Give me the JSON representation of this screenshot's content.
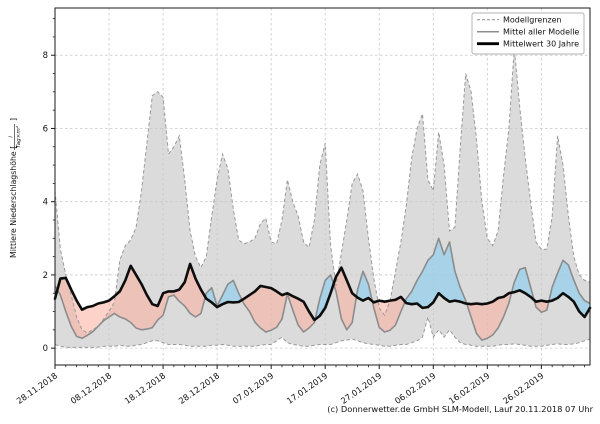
{
  "figure": {
    "footer": "(c) Donnerwetter.de GmbH SLM-Modell, Lauf 20.11.2018 07 Uhr",
    "background": "#ffffff"
  },
  "chart_data": {
    "type": "line",
    "title": "",
    "xlabel": "",
    "ylabel": "Mittlere Niederschlagshöhe [l/(Tag×m²)]",
    "ylabel_parts": {
      "prefix": "Mittlere Niederschlagshöhe [",
      "numerator": "l",
      "denominator": "Tag×m²",
      "suffix": "]"
    },
    "ylim": [
      -0.46,
      9.29
    ],
    "yticks": [
      0,
      2,
      4,
      6,
      8
    ],
    "grid": true,
    "n_days": 100,
    "start_date": "28.11.2018",
    "x_tick_labels": [
      "28.11.2018",
      "08.12.2018",
      "18.12.2018",
      "28.12.2018",
      "07.01.2019",
      "17.01.2019",
      "27.01.2019",
      "06.02.2019",
      "16.02.2019",
      "26.02.2019"
    ],
    "x_tick_day_indices": [
      0,
      10,
      20,
      30,
      40,
      50,
      60,
      70,
      80,
      90
    ],
    "legend": {
      "position": "top-right",
      "entries": [
        {
          "label": "Modellgrenzen",
          "style": "dashed",
          "color": "#999999"
        },
        {
          "label": "Mittel aller Modelle",
          "style": "solid",
          "color": "#8c8c8c"
        },
        {
          "label": "Mittelwert 30 Jahre",
          "style": "solid-thick",
          "color": "#000000"
        }
      ]
    },
    "colors": {
      "band_fill": "#dbdbdb",
      "band_border": "#999999",
      "above_normal_fill": "rgba(146,207,236,0.7)",
      "below_normal_fill": "rgba(252,174,156,0.55)",
      "model_mean_line": "#8c8c8c",
      "mean_30yr_line": "#0d0d0d",
      "grid_line": "#c8c8c8"
    },
    "series": [
      {
        "name": "model_min",
        "label": "Modellgrenzen (min)",
        "values": [
          0.1,
          0.05,
          0.02,
          0.02,
          0.02,
          0.02,
          0.02,
          0.02,
          0.03,
          0.05,
          0.05,
          0.05,
          0.08,
          0.05,
          0.05,
          0.08,
          0.1,
          0.15,
          0.2,
          0.2,
          0.15,
          0.1,
          0.1,
          0.1,
          0.08,
          0.05,
          0.05,
          0.05,
          0.05,
          0.08,
          0.08,
          0.1,
          0.08,
          0.05,
          0.05,
          0.05,
          0.05,
          0.05,
          0.08,
          0.1,
          0.1,
          0.2,
          0.3,
          0.15,
          0.1,
          0.08,
          0.05,
          0.05,
          0.08,
          0.1,
          0.1,
          0.1,
          0.15,
          0.2,
          0.22,
          0.25,
          0.2,
          0.15,
          0.12,
          0.1,
          0.08,
          0.05,
          0.05,
          0.08,
          0.1,
          0.1,
          0.15,
          0.2,
          0.3,
          0.85,
          0.3,
          0.5,
          0.3,
          0.5,
          0.3,
          0.15,
          0.1,
          0.08,
          0.05,
          0.05,
          0.05,
          0.05,
          0.08,
          0.1,
          0.1,
          0.12,
          0.1,
          0.08,
          0.05,
          0.05,
          0.05,
          0.08,
          0.1,
          0.12,
          0.1,
          0.1,
          0.12,
          0.15,
          0.2,
          0.25
        ]
      },
      {
        "name": "model_max",
        "label": "Modellgrenzen (max)",
        "values": [
          4.3,
          2.7,
          2.0,
          1.45,
          0.85,
          0.5,
          0.42,
          0.5,
          0.6,
          0.8,
          1.0,
          1.25,
          2.4,
          2.8,
          2.95,
          3.3,
          4.3,
          5.6,
          6.9,
          7.0,
          6.85,
          5.3,
          5.5,
          5.8,
          4.6,
          3.2,
          2.5,
          2.2,
          2.5,
          3.6,
          4.6,
          5.3,
          4.9,
          3.8,
          2.95,
          2.85,
          2.9,
          3.0,
          3.4,
          3.55,
          2.9,
          2.85,
          3.5,
          4.6,
          4.0,
          3.6,
          2.9,
          2.75,
          3.5,
          5.0,
          5.6,
          2.8,
          1.7,
          2.6,
          3.5,
          4.5,
          4.75,
          4.3,
          3.0,
          1.9,
          1.1,
          0.9,
          1.3,
          2.1,
          2.9,
          3.9,
          5.2,
          6.0,
          6.4,
          4.6,
          4.3,
          5.9,
          5.0,
          3.2,
          3.3,
          5.5,
          7.5,
          7.0,
          5.7,
          4.0,
          3.0,
          2.8,
          3.2,
          4.7,
          6.0,
          8.2,
          6.6,
          5.2,
          4.0,
          2.9,
          2.7,
          2.7,
          3.6,
          5.8,
          5.0,
          3.6,
          2.5,
          2.0,
          1.85,
          1.8
        ]
      },
      {
        "name": "model_mean",
        "label": "Mittel aller Modelle",
        "values": [
          1.7,
          1.45,
          1.0,
          0.6,
          0.32,
          0.27,
          0.35,
          0.45,
          0.6,
          0.75,
          0.85,
          0.95,
          0.85,
          0.8,
          0.7,
          0.55,
          0.5,
          0.52,
          0.56,
          0.77,
          0.9,
          1.4,
          1.45,
          1.28,
          1.15,
          0.95,
          0.85,
          0.95,
          1.5,
          1.65,
          1.15,
          1.45,
          1.75,
          1.85,
          1.5,
          1.2,
          1.0,
          0.71,
          0.55,
          0.44,
          0.49,
          0.57,
          0.8,
          1.48,
          1.04,
          0.63,
          0.44,
          0.55,
          0.7,
          1.35,
          1.85,
          2.0,
          1.55,
          0.8,
          0.5,
          0.7,
          1.6,
          2.1,
          1.75,
          1.1,
          0.57,
          0.44,
          0.49,
          0.63,
          1.0,
          1.35,
          1.55,
          1.85,
          2.1,
          2.4,
          2.55,
          3.0,
          2.55,
          2.9,
          2.1,
          1.65,
          1.3,
          0.85,
          0.4,
          0.22,
          0.27,
          0.36,
          0.55,
          0.85,
          1.23,
          1.8,
          2.15,
          2.2,
          1.67,
          1.12,
          0.98,
          1.04,
          1.67,
          2.05,
          2.4,
          2.27,
          1.86,
          1.5,
          1.3,
          1.22
        ]
      },
      {
        "name": "mean_30yr",
        "label": "Mittelwert 30 Jahre",
        "values": [
          1.35,
          1.9,
          1.92,
          1.6,
          1.3,
          1.05,
          1.12,
          1.15,
          1.22,
          1.25,
          1.3,
          1.42,
          1.55,
          1.85,
          2.25,
          2.0,
          1.75,
          1.45,
          1.2,
          1.15,
          1.5,
          1.55,
          1.55,
          1.6,
          1.8,
          2.3,
          1.9,
          1.6,
          1.35,
          1.25,
          1.12,
          1.2,
          1.26,
          1.25,
          1.26,
          1.35,
          1.45,
          1.55,
          1.7,
          1.67,
          1.64,
          1.55,
          1.45,
          1.5,
          1.42,
          1.35,
          1.27,
          1.0,
          0.77,
          0.88,
          1.1,
          1.5,
          1.95,
          2.2,
          1.85,
          1.5,
          1.38,
          1.3,
          1.37,
          1.25,
          1.3,
          1.27,
          1.3,
          1.32,
          1.4,
          1.23,
          1.2,
          1.22,
          1.1,
          1.12,
          1.25,
          1.5,
          1.37,
          1.27,
          1.3,
          1.27,
          1.22,
          1.2,
          1.22,
          1.2,
          1.22,
          1.27,
          1.37,
          1.4,
          1.5,
          1.53,
          1.58,
          1.5,
          1.4,
          1.27,
          1.3,
          1.27,
          1.3,
          1.37,
          1.5,
          1.4,
          1.27,
          1.0,
          0.85,
          1.1
        ]
      }
    ]
  }
}
